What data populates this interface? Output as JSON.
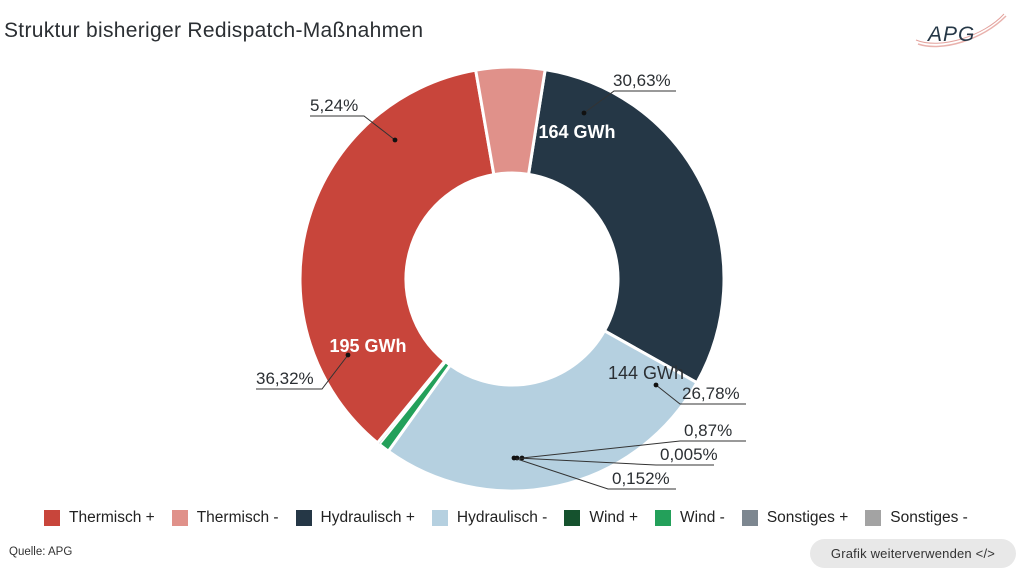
{
  "title": "Struktur bisheriger Redispatch-Maßnahmen",
  "logo": {
    "text": "APG"
  },
  "source": "Quelle: APG",
  "reuse_button": "Grafik weiterverwenden </>",
  "colors": {
    "thermisch_plus": "#c8453b",
    "thermisch_minus": "#e0918a",
    "hydraulisch_plus": "#253746",
    "hydraulisch_minus": "#b5d0e0",
    "wind_plus": "#15522e",
    "wind_minus": "#23a05a",
    "sonstiges_plus": "#7d8790",
    "sonstiges_minus": "#a3a3a3"
  },
  "chart_data": {
    "type": "donut",
    "title": "Struktur bisheriger Redispatch-Maßnahmen",
    "unit": "%",
    "slices": [
      {
        "name": "Hydraulisch +",
        "value": 30.63,
        "label": "30,63%",
        "inner_label": "164 GWh",
        "color_key": "hydraulisch_plus"
      },
      {
        "name": "Hydraulisch -",
        "value": 26.78,
        "label": "26,78%",
        "inner_label": "144 GWh",
        "color_key": "hydraulisch_minus"
      },
      {
        "name": "Wind -",
        "value": 0.87,
        "label": "0,87%",
        "inner_label": "",
        "color_key": "wind_minus"
      },
      {
        "name": "Sonstiges +",
        "value": 0.005,
        "label": "0,005%",
        "inner_label": "",
        "color_key": "sonstiges_plus"
      },
      {
        "name": "Sonstiges -",
        "value": 0.152,
        "label": "0,152%",
        "inner_label": "",
        "color_key": "sonstiges_minus"
      },
      {
        "name": "Thermisch +",
        "value": 36.32,
        "label": "36,32%",
        "inner_label": "195 GWh",
        "color_key": "thermisch_plus"
      },
      {
        "name": "Thermisch -",
        "value": 5.24,
        "label": "5,24%",
        "inner_label": "",
        "color_key": "thermisch_minus"
      }
    ],
    "legend": [
      {
        "label": "Thermisch +",
        "color_key": "thermisch_plus"
      },
      {
        "label": "Thermisch -",
        "color_key": "thermisch_minus"
      },
      {
        "label": "Hydraulisch +",
        "color_key": "hydraulisch_plus"
      },
      {
        "label": "Hydraulisch -",
        "color_key": "hydraulisch_minus"
      },
      {
        "label": "Wind +",
        "color_key": "wind_plus"
      },
      {
        "label": "Wind -",
        "color_key": "wind_minus"
      },
      {
        "label": "Sonstiges +",
        "color_key": "sonstiges_plus"
      },
      {
        "label": "Sonstiges -",
        "color_key": "sonstiges_minus"
      }
    ],
    "legend_position": "bottom"
  }
}
